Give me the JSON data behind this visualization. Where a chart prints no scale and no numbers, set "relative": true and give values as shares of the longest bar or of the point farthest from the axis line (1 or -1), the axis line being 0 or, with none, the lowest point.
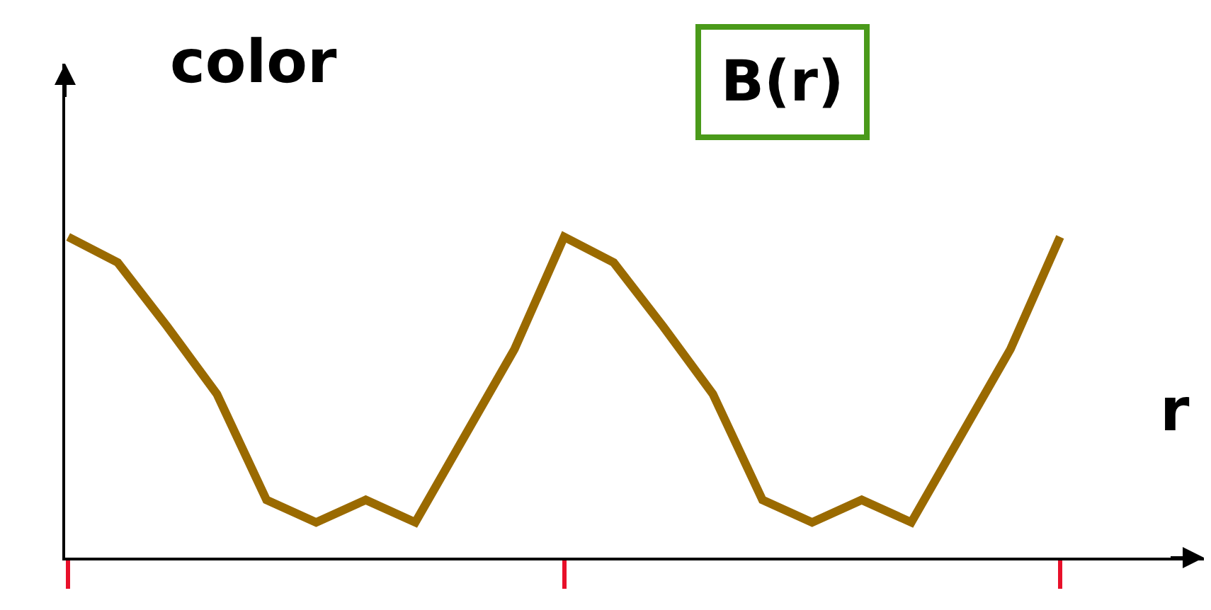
{
  "chart_data": {
    "type": "line",
    "title": "B(r)",
    "ylabel": "color",
    "xlabel": "r",
    "relative": true,
    "marker": "none",
    "line_style": "solid",
    "categories": [
      null,
      null,
      null,
      null,
      null,
      null,
      null,
      null,
      null,
      null,
      null,
      null,
      null,
      null,
      null,
      null,
      null,
      null,
      null,
      null,
      null
    ],
    "series": [
      {
        "color": "#9a6a00",
        "values": [
          1,
          0.92,
          0.72,
          0.51,
          0.18,
          0.11,
          0.18,
          0.11,
          0.38,
          0.65,
          1,
          0.92,
          0.72,
          0.51,
          0.18,
          0.11,
          0.18,
          0.11,
          0.38,
          0.65,
          1
        ]
      }
    ]
  }
}
